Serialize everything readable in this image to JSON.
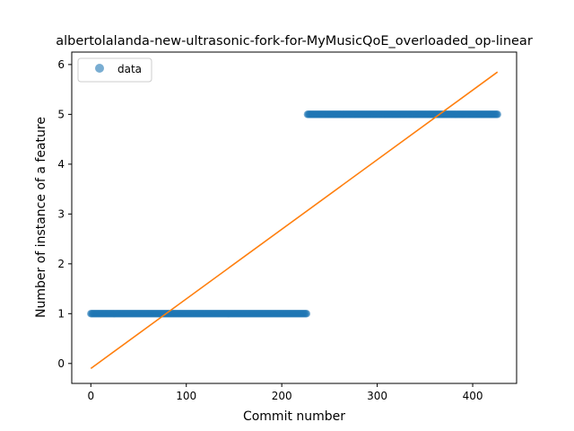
{
  "chart_data": {
    "type": "scatter",
    "title": "albertolalanda-new-ultrasonic-fork-for-MyMusicQoE_overloaded_op-linear",
    "xlabel": "Commit number",
    "ylabel": "Number of instance of a feature",
    "xlim": [
      -20,
      446
    ],
    "ylim": [
      -0.4,
      6.25
    ],
    "xticks": [
      0,
      100,
      200,
      300,
      400
    ],
    "yticks": [
      0,
      1,
      2,
      3,
      4,
      5,
      6
    ],
    "legend": {
      "placement": "top-left",
      "entries": [
        "data"
      ]
    },
    "grid": false,
    "series": [
      {
        "name": "data",
        "kind": "points",
        "color": "#1f77b4",
        "segments": [
          {
            "x_start": 0,
            "x_end": 226,
            "y": 1
          },
          {
            "x_start": 227,
            "x_end": 426,
            "y": 5
          }
        ]
      },
      {
        "kind": "line",
        "color": "#ff7f0e",
        "x": [
          0,
          426
        ],
        "y": [
          -0.1,
          5.85
        ]
      }
    ]
  }
}
